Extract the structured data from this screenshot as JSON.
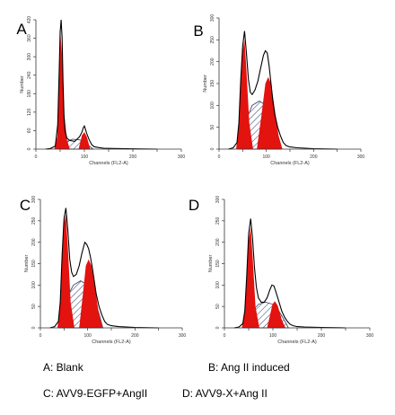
{
  "chart_data": [
    {
      "type": "area",
      "panel_label": "A",
      "xlabel": "Channels (FL2-A)",
      "ylabel": "Number",
      "xlim": [
        0,
        300
      ],
      "ylim": [
        0,
        420
      ],
      "x_ticks": [
        0,
        50,
        100,
        150,
        200,
        250,
        300
      ],
      "x_tick_labels": [
        "0",
        "",
        "100",
        "",
        "200",
        "",
        "300"
      ],
      "y_ticks": [
        0,
        60,
        120,
        180,
        240,
        300,
        360,
        420
      ],
      "y_tick_labels": [
        "0",
        "60",
        "120",
        "180",
        "240",
        "300",
        "360",
        "420"
      ],
      "series": [
        {
          "name": "",
          "role": "histogram",
          "x": [
            20,
            30,
            40,
            45,
            48,
            50,
            52,
            54,
            56,
            58,
            60,
            64,
            70,
            80,
            90,
            95,
            98,
            100,
            102,
            105,
            110,
            115,
            120,
            130,
            140,
            160,
            200,
            250
          ],
          "values": [
            0,
            2,
            10,
            80,
            250,
            380,
            420,
            360,
            220,
            110,
            60,
            35,
            28,
            25,
            40,
            55,
            70,
            75,
            65,
            50,
            30,
            15,
            8,
            5,
            3,
            2,
            1,
            0
          ]
        },
        {
          "name": "",
          "role": "G1 fit",
          "x": [
            38,
            44,
            48,
            51,
            54,
            58,
            64,
            70
          ],
          "values": [
            0,
            40,
            230,
            370,
            300,
            120,
            30,
            0
          ]
        },
        {
          "name": "",
          "role": "S-phase fit",
          "x": [
            48,
            60,
            75,
            90,
            100,
            110,
            118
          ],
          "values": [
            0,
            22,
            32,
            30,
            22,
            10,
            0
          ]
        },
        {
          "name": "",
          "role": "G2/M fit",
          "x": [
            88,
            95,
            100,
            105,
            112
          ],
          "values": [
            0,
            45,
            55,
            40,
            0
          ]
        }
      ]
    },
    {
      "type": "area",
      "panel_label": "B",
      "xlabel": "Channels (FL2-A)",
      "ylabel": "Number",
      "xlim": [
        0,
        300
      ],
      "ylim": [
        0,
        300
      ],
      "x_ticks": [
        0,
        50,
        100,
        150,
        200,
        250,
        300
      ],
      "x_tick_labels": [
        "0",
        "",
        "100",
        "",
        "200",
        "",
        "300"
      ],
      "y_ticks": [
        0,
        50,
        100,
        150,
        200,
        250,
        300
      ],
      "y_tick_labels": [
        "0",
        "50",
        "100",
        "150",
        "200",
        "250",
        "300"
      ],
      "series": [
        {
          "name": "",
          "role": "histogram",
          "x": [
            20,
            30,
            38,
            42,
            46,
            50,
            54,
            58,
            62,
            66,
            70,
            76,
            82,
            88,
            94,
            98,
            102,
            106,
            110,
            114,
            118,
            124,
            130,
            136,
            142,
            150,
            165,
            200,
            250
          ],
          "values": [
            0,
            3,
            15,
            60,
            160,
            235,
            270,
            220,
            160,
            130,
            125,
            135,
            155,
            185,
            215,
            225,
            220,
            190,
            150,
            110,
            80,
            50,
            30,
            15,
            8,
            5,
            3,
            1,
            0
          ]
        },
        {
          "name": "",
          "role": "G1 fit",
          "x": [
            36,
            42,
            46,
            50,
            54,
            58,
            64,
            72
          ],
          "values": [
            0,
            55,
            150,
            225,
            250,
            180,
            60,
            0
          ]
        },
        {
          "name": "",
          "role": "S-phase fit",
          "x": [
            40,
            55,
            70,
            85,
            100,
            112,
            125,
            132
          ],
          "values": [
            0,
            60,
            100,
            110,
            100,
            75,
            30,
            0
          ]
        },
        {
          "name": "",
          "role": "G2/M fit",
          "x": [
            80,
            90,
            98,
            104,
            110,
            118,
            126,
            134
          ],
          "values": [
            0,
            80,
            150,
            165,
            150,
            90,
            30,
            0
          ]
        }
      ]
    },
    {
      "type": "area",
      "panel_label": "C",
      "xlabel": "Channels (FL2-A)",
      "ylabel": "Number",
      "xlim": [
        0,
        300
      ],
      "ylim": [
        0,
        300
      ],
      "x_ticks": [
        0,
        50,
        100,
        150,
        200,
        250,
        300
      ],
      "x_tick_labels": [
        "0",
        "",
        "100",
        "",
        "200",
        "",
        "300"
      ],
      "y_ticks": [
        0,
        50,
        100,
        150,
        200,
        250,
        300
      ],
      "y_tick_labels": [
        "0",
        "50",
        "100",
        "150",
        "200",
        "250",
        "300"
      ],
      "series": [
        {
          "name": "",
          "role": "histogram",
          "x": [
            20,
            30,
            38,
            42,
            46,
            50,
            54,
            58,
            62,
            66,
            70,
            76,
            82,
            88,
            94,
            98,
            102,
            106,
            110,
            114,
            118,
            124,
            130,
            136,
            142,
            150,
            165,
            200,
            250
          ],
          "values": [
            0,
            3,
            15,
            60,
            170,
            255,
            280,
            230,
            160,
            130,
            120,
            125,
            145,
            175,
            200,
            195,
            185,
            165,
            140,
            110,
            80,
            50,
            30,
            15,
            8,
            5,
            3,
            1,
            0
          ]
        },
        {
          "name": "",
          "role": "G1 fit",
          "x": [
            36,
            42,
            46,
            50,
            54,
            58,
            64,
            72
          ],
          "values": [
            0,
            60,
            165,
            245,
            265,
            190,
            60,
            0
          ]
        },
        {
          "name": "",
          "role": "S-phase fit",
          "x": [
            40,
            55,
            70,
            85,
            100,
            112,
            125,
            132
          ],
          "values": [
            0,
            70,
            100,
            110,
            100,
            75,
            30,
            0
          ]
        },
        {
          "name": "",
          "role": "G2/M fit",
          "x": [
            82,
            90,
            96,
            102,
            108,
            116,
            124,
            132
          ],
          "values": [
            0,
            80,
            145,
            160,
            145,
            90,
            30,
            0
          ]
        }
      ]
    },
    {
      "type": "area",
      "panel_label": "D",
      "xlabel": "Channels (FL2-A)",
      "ylabel": "Number",
      "xlim": [
        0,
        300
      ],
      "ylim": [
        0,
        300
      ],
      "x_ticks": [
        0,
        50,
        100,
        150,
        200,
        250,
        300
      ],
      "x_tick_labels": [
        "0",
        "",
        "100",
        "",
        "200",
        "",
        "300"
      ],
      "y_ticks": [
        0,
        50,
        100,
        150,
        200,
        250,
        300
      ],
      "y_tick_labels": [
        "0",
        "50",
        "100",
        "150",
        "200",
        "250",
        "300"
      ],
      "series": [
        {
          "name": "",
          "role": "histogram",
          "x": [
            20,
            30,
            38,
            42,
            46,
            50,
            54,
            58,
            62,
            66,
            70,
            76,
            82,
            88,
            94,
            98,
            102,
            106,
            110,
            114,
            118,
            124,
            130,
            136,
            142,
            150,
            165,
            200,
            250
          ],
          "values": [
            0,
            2,
            10,
            40,
            120,
            220,
            255,
            210,
            140,
            95,
            70,
            60,
            60,
            70,
            90,
            100,
            98,
            85,
            70,
            55,
            40,
            25,
            15,
            8,
            5,
            3,
            2,
            1,
            0
          ]
        },
        {
          "name": "",
          "role": "G1 fit",
          "x": [
            36,
            42,
            46,
            50,
            54,
            58,
            64,
            72
          ],
          "values": [
            0,
            40,
            115,
            205,
            235,
            170,
            50,
            0
          ]
        },
        {
          "name": "",
          "role": "S-phase fit",
          "x": [
            40,
            55,
            70,
            85,
            100,
            112,
            125,
            132
          ],
          "values": [
            0,
            35,
            55,
            60,
            55,
            40,
            15,
            0
          ]
        },
        {
          "name": "",
          "role": "G2/M fit",
          "x": [
            88,
            94,
            99,
            104,
            110,
            118,
            126
          ],
          "values": [
            0,
            30,
            55,
            62,
            52,
            20,
            0
          ]
        }
      ]
    }
  ],
  "colors": {
    "fit_fill": "#e3130f",
    "hatch": "#2d3a6a",
    "axis": "#333333",
    "histogram": "#000000"
  },
  "captions": {
    "a": "A:  Blank",
    "b": "B:  Ang II induced",
    "c": "C:  AVV9-EGFP+AngII",
    "d": "D:  AVV9-X+Ang II"
  }
}
